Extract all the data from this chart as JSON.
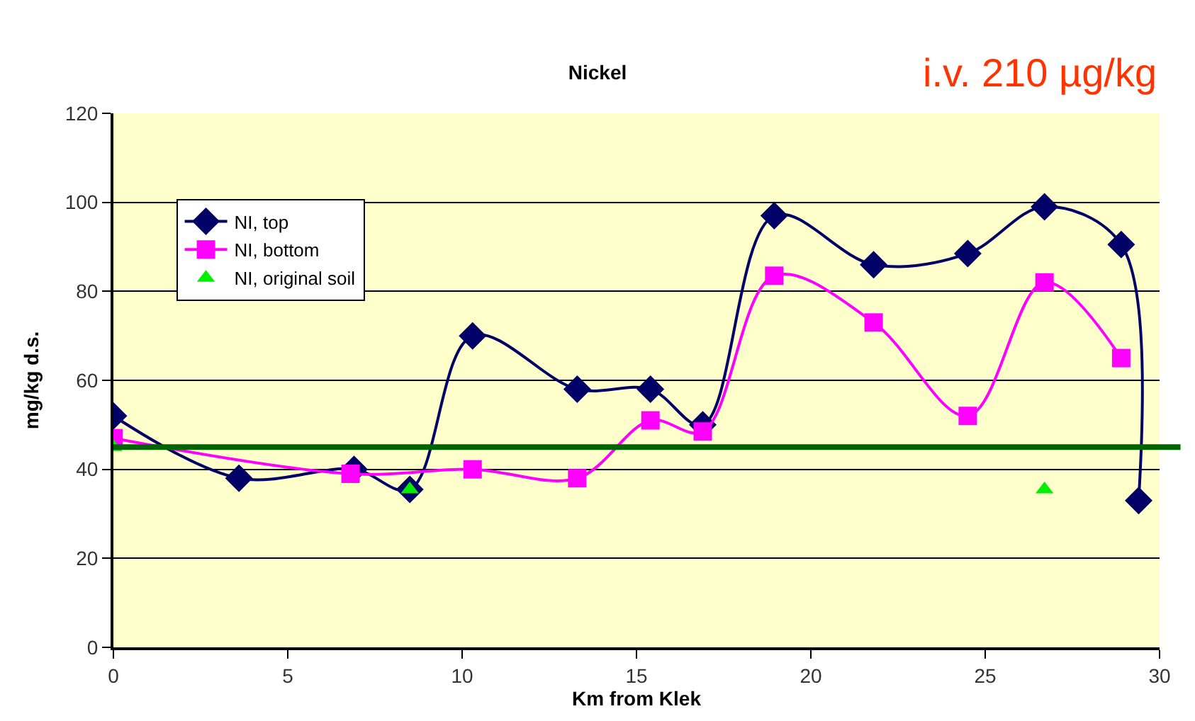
{
  "chart_data": {
    "type": "line",
    "title": "Nickel",
    "xlabel": "Km from Klek",
    "ylabel": "mg/kg d.s.",
    "annotations": [
      "i.v. 210 µg/kg"
    ],
    "xlim": [
      0,
      30
    ],
    "xticks": [
      0,
      5,
      10,
      15,
      20,
      25,
      30
    ],
    "ylim": [
      0,
      120
    ],
    "yticks": [
      0,
      20,
      40,
      60,
      80,
      100,
      120
    ],
    "grid": "y",
    "legend": "top left",
    "ref_lines": [
      {
        "axis": "y",
        "value": 45,
        "color": "#006400"
      }
    ],
    "series": [
      {
        "name": "NI, top",
        "color": "#000066",
        "marker": "diamond",
        "x": [
          0,
          3.6,
          6.9,
          8.5,
          10.3,
          13.3,
          15.4,
          16.9,
          18.95,
          21.8,
          24.5,
          26.7,
          28.9,
          29.4
        ],
        "values": [
          52,
          38,
          40,
          35.5,
          70,
          58,
          58,
          50,
          97,
          86,
          88.5,
          99,
          90.5,
          33
        ]
      },
      {
        "name": "NI, bottom",
        "color": "#ff00ff",
        "marker": "square",
        "x": [
          0,
          6.8,
          10.3,
          13.3,
          15.4,
          16.9,
          18.95,
          21.8,
          24.5,
          26.7,
          28.9
        ],
        "values": [
          47,
          39,
          40,
          38,
          51,
          48.5,
          83.5,
          73,
          52,
          82,
          65
        ]
      },
      {
        "name": "NI, original soil",
        "color": "#00ee00",
        "marker": "triangle",
        "type": "scatter",
        "x": [
          0,
          8.5,
          26.7
        ],
        "values": [
          45,
          35.5,
          35.5
        ]
      }
    ]
  }
}
